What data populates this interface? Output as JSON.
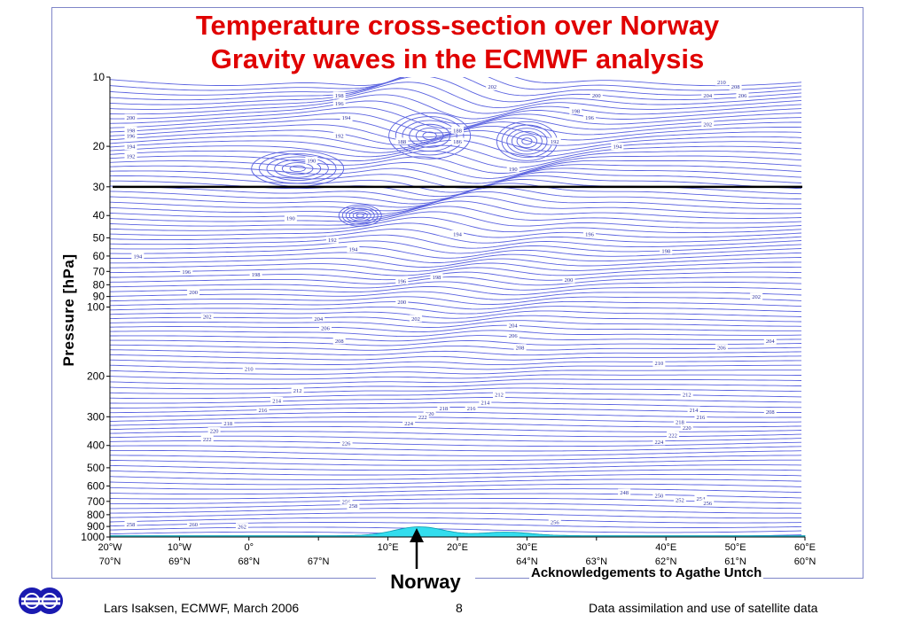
{
  "title": {
    "line1": "Temperature cross-section over Norway",
    "line2": "Gravity waves in the ECMWF analysis"
  },
  "colors": {
    "title": "#e00000",
    "contour": "#5b63e0",
    "terrain": "#33ddee",
    "frame": "#7f86c8"
  },
  "chart_data": {
    "type": "contour",
    "ylabel": "Pressure [hPa]",
    "yscale": "log",
    "yreverse": true,
    "ylim": [
      10,
      1000
    ],
    "yticks": [
      10,
      20,
      30,
      40,
      50,
      60,
      70,
      80,
      90,
      100,
      200,
      300,
      400,
      500,
      600,
      700,
      800,
      900,
      1000
    ],
    "xticks": [
      {
        "lon": "20°W",
        "lat": "70°N"
      },
      {
        "lon": "10°W",
        "lat": "69°N"
      },
      {
        "lon": "0°",
        "lat": "68°N"
      },
      {
        "lon": "",
        "lat": "67°N"
      },
      {
        "lon": "10°E",
        "lat": ""
      },
      {
        "lon": "20°E",
        "lat": ""
      },
      {
        "lon": "30°E",
        "lat": "64°N"
      },
      {
        "lon": "",
        "lat": "63°N"
      },
      {
        "lon": "40°E",
        "lat": "62°N"
      },
      {
        "lon": "50°E",
        "lat": "61°N"
      },
      {
        "lon": "60°E",
        "lat": "60°N"
      }
    ],
    "reference_line_hpa": 30,
    "contour_labels": [
      {
        "value": "198",
        "xf": 0.33,
        "p": 12
      },
      {
        "value": "196",
        "xf": 0.33,
        "p": 13
      },
      {
        "value": "194",
        "xf": 0.34,
        "p": 15
      },
      {
        "value": "192",
        "xf": 0.33,
        "p": 18
      },
      {
        "value": "200",
        "xf": 0.03,
        "p": 15
      },
      {
        "value": "198",
        "xf": 0.03,
        "p": 17
      },
      {
        "value": "196",
        "xf": 0.03,
        "p": 18
      },
      {
        "value": "194",
        "xf": 0.03,
        "p": 20
      },
      {
        "value": "192",
        "xf": 0.03,
        "p": 22
      },
      {
        "value": "190",
        "xf": 0.29,
        "p": 23
      },
      {
        "value": "202",
        "xf": 0.55,
        "p": 11
      },
      {
        "value": "200",
        "xf": 0.7,
        "p": 12
      },
      {
        "value": "198",
        "xf": 0.67,
        "p": 14
      },
      {
        "value": "196",
        "xf": 0.69,
        "p": 15
      },
      {
        "value": "210",
        "xf": 0.88,
        "p": 10.5
      },
      {
        "value": "208",
        "xf": 0.9,
        "p": 11
      },
      {
        "value": "206",
        "xf": 0.91,
        "p": 12
      },
      {
        "value": "204",
        "xf": 0.86,
        "p": 12
      },
      {
        "value": "202",
        "xf": 0.86,
        "p": 16
      },
      {
        "value": "194",
        "xf": 0.73,
        "p": 20
      },
      {
        "value": "192",
        "xf": 0.64,
        "p": 19
      },
      {
        "value": "188",
        "xf": 0.5,
        "p": 17
      },
      {
        "value": "186",
        "xf": 0.5,
        "p": 19
      },
      {
        "value": "188",
        "xf": 0.42,
        "p": 19
      },
      {
        "value": "190",
        "xf": 0.58,
        "p": 25
      },
      {
        "value": "190",
        "xf": 0.26,
        "p": 41
      },
      {
        "value": "192",
        "xf": 0.32,
        "p": 51
      },
      {
        "value": "194",
        "xf": 0.35,
        "p": 56
      },
      {
        "value": "194",
        "xf": 0.04,
        "p": 60
      },
      {
        "value": "196",
        "xf": 0.11,
        "p": 70
      },
      {
        "value": "198",
        "xf": 0.21,
        "p": 72
      },
      {
        "value": "200",
        "xf": 0.12,
        "p": 86
      },
      {
        "value": "202",
        "xf": 0.14,
        "p": 110
      },
      {
        "value": "204",
        "xf": 0.3,
        "p": 112
      },
      {
        "value": "206",
        "xf": 0.31,
        "p": 123
      },
      {
        "value": "208",
        "xf": 0.33,
        "p": 140
      },
      {
        "value": "210",
        "xf": 0.2,
        "p": 185
      },
      {
        "value": "212",
        "xf": 0.27,
        "p": 230
      },
      {
        "value": "194",
        "xf": 0.5,
        "p": 48
      },
      {
        "value": "196",
        "xf": 0.69,
        "p": 48
      },
      {
        "value": "198",
        "xf": 0.8,
        "p": 57
      },
      {
        "value": "196",
        "xf": 0.42,
        "p": 77
      },
      {
        "value": "198",
        "xf": 0.47,
        "p": 74
      },
      {
        "value": "200",
        "xf": 0.42,
        "p": 95
      },
      {
        "value": "202",
        "xf": 0.44,
        "p": 112
      },
      {
        "value": "200",
        "xf": 0.66,
        "p": 76
      },
      {
        "value": "204",
        "xf": 0.58,
        "p": 120
      },
      {
        "value": "206",
        "xf": 0.58,
        "p": 133
      },
      {
        "value": "208",
        "xf": 0.59,
        "p": 150
      },
      {
        "value": "210",
        "xf": 0.79,
        "p": 175
      },
      {
        "value": "212",
        "xf": 0.56,
        "p": 240
      },
      {
        "value": "214",
        "xf": 0.54,
        "p": 260
      },
      {
        "value": "216",
        "xf": 0.52,
        "p": 275
      },
      {
        "value": "218",
        "xf": 0.48,
        "p": 275
      },
      {
        "value": "220",
        "xf": 0.46,
        "p": 290
      },
      {
        "value": "222",
        "xf": 0.45,
        "p": 300
      },
      {
        "value": "224",
        "xf": 0.43,
        "p": 320
      },
      {
        "value": "226",
        "xf": 0.34,
        "p": 390
      },
      {
        "value": "214",
        "xf": 0.24,
        "p": 255
      },
      {
        "value": "216",
        "xf": 0.22,
        "p": 280
      },
      {
        "value": "218",
        "xf": 0.17,
        "p": 320
      },
      {
        "value": "220",
        "xf": 0.15,
        "p": 345
      },
      {
        "value": "222",
        "xf": 0.14,
        "p": 375
      },
      {
        "value": "202",
        "xf": 0.93,
        "p": 90
      },
      {
        "value": "204",
        "xf": 0.95,
        "p": 140
      },
      {
        "value": "206",
        "xf": 0.88,
        "p": 150
      },
      {
        "value": "208",
        "xf": 0.95,
        "p": 285
      },
      {
        "value": "212",
        "xf": 0.83,
        "p": 240
      },
      {
        "value": "214",
        "xf": 0.84,
        "p": 280
      },
      {
        "value": "216",
        "xf": 0.85,
        "p": 300
      },
      {
        "value": "218",
        "xf": 0.82,
        "p": 315
      },
      {
        "value": "220",
        "xf": 0.83,
        "p": 335
      },
      {
        "value": "222",
        "xf": 0.81,
        "p": 360
      },
      {
        "value": "224",
        "xf": 0.79,
        "p": 385
      },
      {
        "value": "248",
        "xf": 0.74,
        "p": 640
      },
      {
        "value": "250",
        "xf": 0.79,
        "p": 660
      },
      {
        "value": "252",
        "xf": 0.82,
        "p": 690
      },
      {
        "value": "254",
        "xf": 0.85,
        "p": 680
      },
      {
        "value": "256",
        "xf": 0.86,
        "p": 710
      },
      {
        "value": "256",
        "xf": 0.34,
        "p": 700
      },
      {
        "value": "258",
        "xf": 0.35,
        "p": 730
      },
      {
        "value": "258",
        "xf": 0.03,
        "p": 880
      },
      {
        "value": "260",
        "xf": 0.12,
        "p": 880
      },
      {
        "value": "262",
        "xf": 0.19,
        "p": 900
      },
      {
        "value": "256",
        "xf": 0.64,
        "p": 860
      }
    ]
  },
  "annotations": {
    "norway_label": "Norway",
    "acknowledgement": "Acknowledgements to Agathe Untch"
  },
  "footer": {
    "left": "Lars Isaksen, ECMWF, March 2006",
    "page": "8",
    "right": "Data assimilation and use of satellite data"
  }
}
